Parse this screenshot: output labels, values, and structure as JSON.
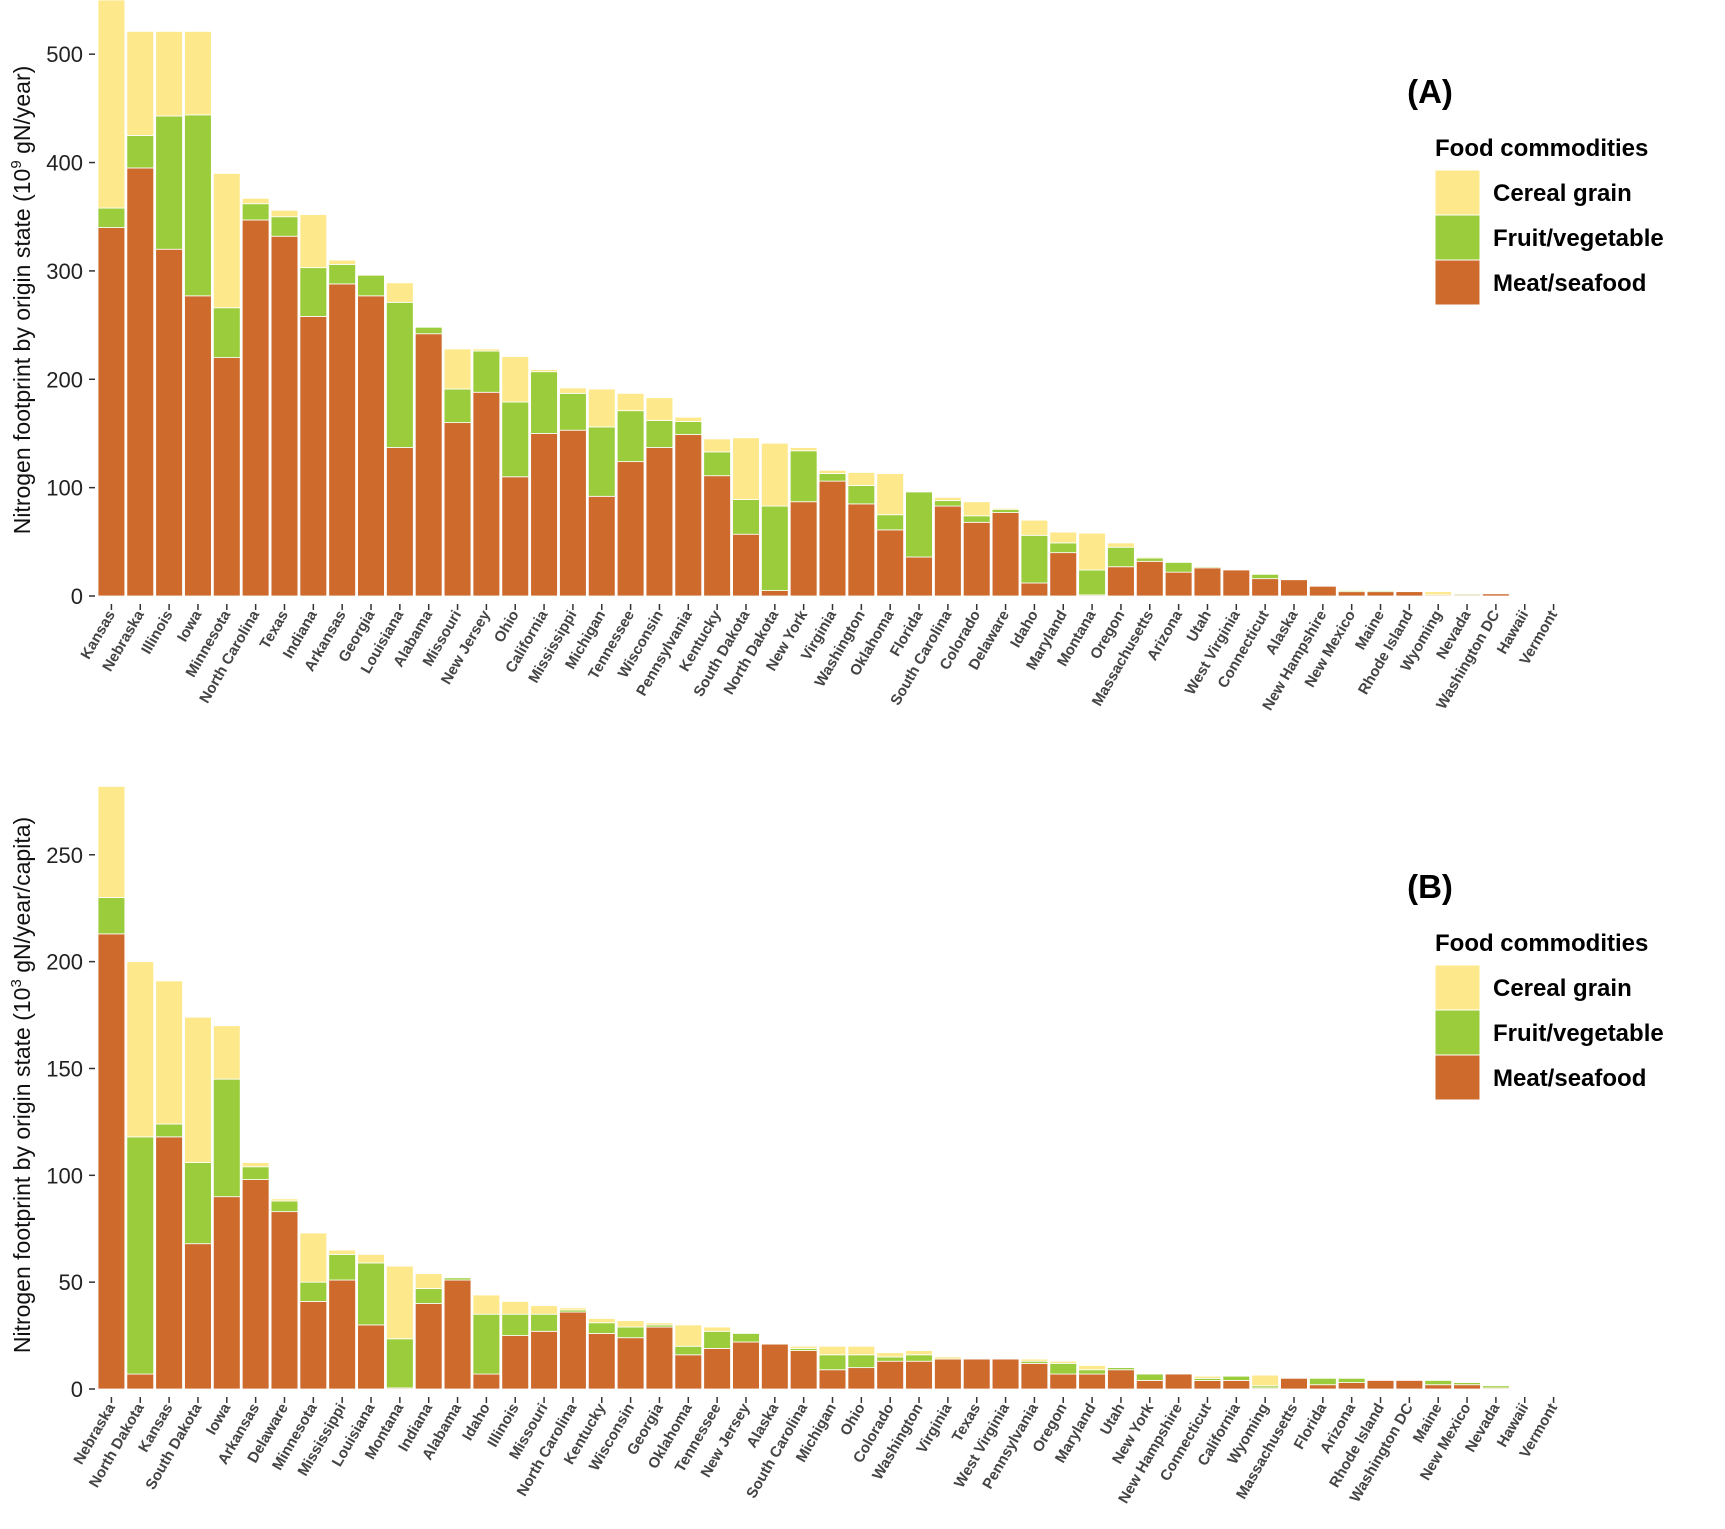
{
  "chart_data": [
    {
      "type": "bar",
      "stacked": true,
      "panel_label": "(A)",
      "ylabel": "Nitrogen footprint by origin state (10^9 gN/year)",
      "ylabel_main": "Nitrogen footprint by origin state (10",
      "ylabel_sup": "9",
      "ylabel_tail": " gN/year)",
      "ylim": [
        0,
        550
      ],
      "yticks": [
        0,
        100,
        200,
        300,
        400,
        500
      ],
      "legend": {
        "title": "Food commodities",
        "position": "right"
      },
      "categories": [
        "Kansas",
        "Nebraska",
        "Illinois",
        "Iowa",
        "Minnesota",
        "North Carolina",
        "Texas",
        "Indiana",
        "Arkansas",
        "Georgia",
        "Louisiana",
        "Alabama",
        "Missouri",
        "New Jersey",
        "Ohio",
        "California",
        "Mississippi",
        "Michigan",
        "Tennessee",
        "Wisconsin",
        "Pennsylvania",
        "Kentucky",
        "South Dakota",
        "North Dakota",
        "New York",
        "Virginia",
        "Washington",
        "Oklahoma",
        "Florida",
        "South Carolina",
        "Colorado",
        "Delaware",
        "Idaho",
        "Maryland",
        "Montana",
        "Oregon",
        "Massachusetts",
        "Arizona",
        "Utah",
        "West Virginia",
        "Connecticut",
        "Alaska",
        "New Hampshire",
        "New Mexico",
        "Maine",
        "Rhode Island",
        "Wyoming",
        "Nevada",
        "Washington DC",
        "Hawaii",
        "Vermont"
      ],
      "series": [
        {
          "name": "Meat/seafood",
          "color": "#cd6a2c",
          "values": [
            340,
            395,
            320,
            277,
            220,
            347,
            332,
            258,
            288,
            277,
            137,
            242,
            160,
            188,
            110,
            150,
            153,
            92,
            124,
            137,
            149,
            111,
            57,
            5,
            87,
            106,
            85,
            61,
            36,
            83,
            68,
            77,
            12,
            40,
            1,
            27,
            32,
            22,
            26,
            24,
            16,
            15,
            9,
            4,
            4,
            4,
            1,
            1,
            2,
            0.5,
            0.3
          ]
        },
        {
          "name": "Fruit/vegetable",
          "color": "#9acc3c",
          "values": [
            18,
            30,
            123,
            167,
            46,
            15,
            18,
            45,
            18,
            19,
            134,
            6,
            31,
            38,
            69,
            57,
            34,
            64,
            47,
            25,
            12,
            22,
            32,
            78,
            47,
            7,
            17,
            14,
            60,
            5,
            6,
            3,
            44,
            9,
            23,
            18,
            3,
            9,
            1,
            0,
            4,
            0,
            0,
            1,
            1,
            0,
            0,
            1,
            0,
            0,
            0
          ]
        },
        {
          "name": "Cereal grain",
          "color": "#fde98c",
          "values": [
            192,
            96,
            78,
            77,
            124,
            5,
            6,
            49,
            4,
            0,
            18,
            0,
            37,
            2,
            42,
            2,
            5,
            35,
            16,
            21,
            4,
            12,
            57,
            58,
            3,
            3,
            12,
            38,
            0,
            3,
            13,
            1,
            14,
            10,
            34,
            4,
            1,
            0,
            0,
            0,
            0,
            0,
            0,
            1,
            0,
            0,
            3,
            0,
            0,
            0,
            0
          ]
        }
      ]
    },
    {
      "type": "bar",
      "stacked": true,
      "panel_label": "(B)",
      "ylabel": "Nitrogen footprint by origin state (10^3 gN/year/capita)",
      "ylabel_main": "Nitrogen footprint by origin state (10",
      "ylabel_sup": "3",
      "ylabel_tail": " gN/year/capita)",
      "ylim": [
        0,
        285
      ],
      "yticks": [
        0,
        50,
        100,
        150,
        200,
        250
      ],
      "legend": {
        "title": "Food commodities",
        "position": "right"
      },
      "categories": [
        "Nebraska",
        "North Dakota",
        "Kansas",
        "South Dakota",
        "Iowa",
        "Arkansas",
        "Delaware",
        "Minnesota",
        "Mississippi",
        "Louisiana",
        "Montana",
        "Indiana",
        "Alabama",
        "Idaho",
        "Illinois",
        "Missouri",
        "North Carolina",
        "Kentucky",
        "Wisconsin",
        "Georgia",
        "Oklahoma",
        "Tennessee",
        "New Jersey",
        "Alaska",
        "South Carolina",
        "Michigan",
        "Ohio",
        "Colorado",
        "Washington",
        "Virginia",
        "Texas",
        "West Virginia",
        "Pennsylvania",
        "Oregon",
        "Maryland",
        "Utah",
        "New York",
        "New Hampshire",
        "Connecticut",
        "California",
        "Wyoming",
        "Massachusetts",
        "Florida",
        "Arizona",
        "Rhode Island",
        "Washington DC",
        "Maine",
        "New Mexico",
        "Nevada",
        "Hawaii",
        "Vermont"
      ],
      "series": [
        {
          "name": "Meat/seafood",
          "color": "#cd6a2c",
          "values": [
            213,
            7,
            118,
            68,
            90,
            98,
            83,
            41,
            51,
            30,
            0.5,
            40,
            51,
            7,
            25,
            27,
            36,
            26,
            24,
            29,
            16,
            19,
            22,
            21,
            18,
            9,
            10,
            13,
            13,
            14,
            14,
            14,
            12,
            7,
            7,
            9,
            4,
            7,
            4,
            4,
            0.5,
            5,
            2,
            3,
            4,
            4,
            2,
            2,
            0.5,
            0.3,
            0.3
          ]
        },
        {
          "name": "Fruit/vegetable",
          "color": "#9acc3c",
          "values": [
            17,
            111,
            6,
            38,
            55,
            6,
            5,
            9,
            12,
            29,
            23,
            7,
            1,
            28,
            10,
            8,
            1,
            5,
            5,
            1,
            4,
            8,
            4,
            0,
            1,
            7,
            6,
            2,
            3,
            0,
            0,
            0,
            1,
            5,
            2,
            1,
            3,
            0,
            1,
            2,
            1,
            0,
            3,
            2,
            0,
            0,
            2,
            1,
            1,
            0,
            0
          ]
        },
        {
          "name": "Cereal grain",
          "color": "#fde98c",
          "values": [
            52,
            82,
            67,
            68,
            25,
            2,
            1,
            23,
            2,
            4,
            34,
            7,
            0,
            9,
            6,
            4,
            1,
            2,
            3,
            1,
            10,
            2,
            0,
            0,
            1,
            4,
            4,
            2,
            2,
            1,
            0,
            0,
            1,
            1,
            2,
            0,
            0,
            0,
            1,
            0,
            5,
            0,
            0,
            0,
            0,
            0,
            0,
            0,
            0,
            0,
            0
          ]
        }
      ]
    }
  ]
}
